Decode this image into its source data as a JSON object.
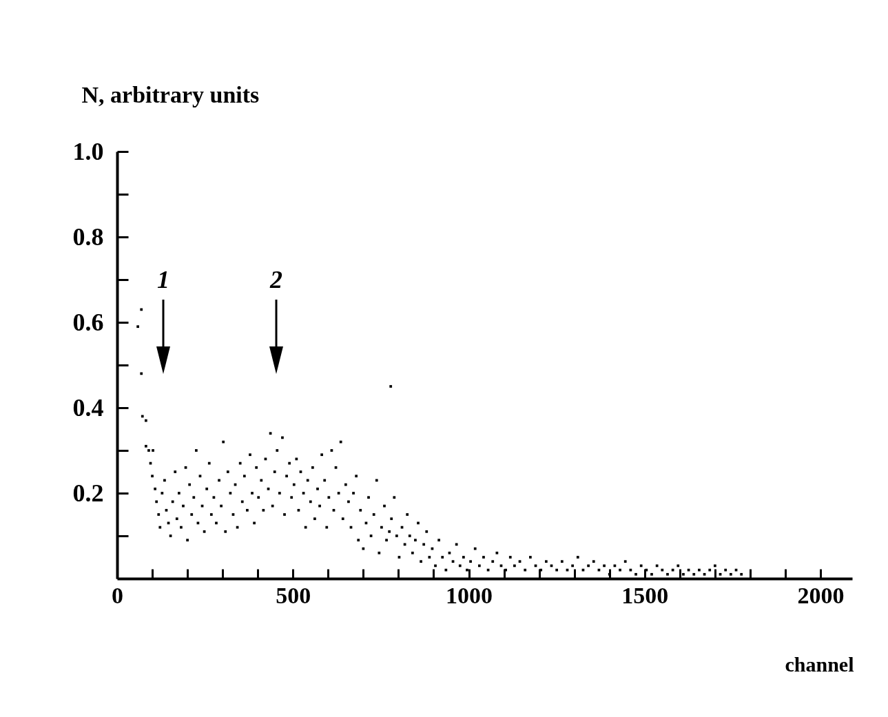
{
  "chart_data": {
    "type": "scatter",
    "ylabel": "N, arbitrary units",
    "xlabel": "channel",
    "x": [
      59,
      69,
      69,
      72,
      82,
      82,
      90,
      95,
      100,
      102,
      108,
      112,
      118,
      122,
      128,
      135,
      140,
      146,
      152,
      158,
      165,
      170,
      176,
      182,
      188,
      195,
      200,
      206,
      212,
      218,
      225,
      230,
      236,
      242,
      248,
      255,
      262,
      268,
      275,
      282,
      290,
      296,
      302,
      308,
      315,
      322,
      330,
      336,
      342,
      350,
      356,
      362,
      370,
      378,
      384,
      390,
      396,
      402,
      410,
      416,
      422,
      430,
      436,
      442,
      448,
      455,
      462,
      470,
      476,
      482,
      490,
      496,
      503,
      510,
      516,
      522,
      530,
      536,
      542,
      550,
      556,
      562,
      570,
      576,
      582,
      590,
      596,
      602,
      610,
      616,
      622,
      630,
      636,
      642,
      650,
      658,
      665,
      672,
      680,
      686,
      692,
      700,
      708,
      715,
      722,
      730,
      738,
      745,
      752,
      760,
      766,
      774,
      778,
      780,
      788,
      795,
      802,
      810,
      818,
      825,
      832,
      840,
      848,
      856,
      864,
      872,
      880,
      888,
      896,
      905,
      915,
      925,
      935,
      945,
      955,
      965,
      975,
      985,
      995,
      1005,
      1018,
      1030,
      1042,
      1055,
      1068,
      1080,
      1092,
      1105,
      1118,
      1130,
      1145,
      1160,
      1175,
      1190,
      1205,
      1220,
      1235,
      1250,
      1265,
      1280,
      1295,
      1310,
      1325,
      1340,
      1355,
      1370,
      1385,
      1400,
      1415,
      1430,
      1445,
      1460,
      1475,
      1490,
      1505,
      1520,
      1535,
      1550,
      1565,
      1580,
      1595,
      1610,
      1625,
      1640,
      1655,
      1670,
      1685,
      1700,
      1715,
      1730,
      1745,
      1760,
      1775
    ],
    "series": [
      {
        "color": "#000000",
        "values": [
          0.59,
          0.63,
          0.48,
          0.38,
          0.37,
          0.31,
          0.3,
          0.27,
          0.24,
          0.3,
          0.21,
          0.18,
          0.15,
          0.12,
          0.2,
          0.23,
          0.16,
          0.13,
          0.1,
          0.18,
          0.25,
          0.14,
          0.2,
          0.12,
          0.17,
          0.26,
          0.09,
          0.22,
          0.15,
          0.19,
          0.3,
          0.13,
          0.24,
          0.17,
          0.11,
          0.21,
          0.27,
          0.15,
          0.19,
          0.13,
          0.23,
          0.17,
          0.32,
          0.11,
          0.25,
          0.2,
          0.15,
          0.22,
          0.12,
          0.27,
          0.18,
          0.24,
          0.16,
          0.29,
          0.2,
          0.13,
          0.26,
          0.19,
          0.23,
          0.16,
          0.28,
          0.21,
          0.34,
          0.17,
          0.25,
          0.3,
          0.2,
          0.33,
          0.15,
          0.24,
          0.27,
          0.19,
          0.22,
          0.28,
          0.16,
          0.25,
          0.2,
          0.12,
          0.23,
          0.18,
          0.26,
          0.14,
          0.21,
          0.17,
          0.29,
          0.23,
          0.12,
          0.19,
          0.3,
          0.16,
          0.26,
          0.2,
          0.32,
          0.14,
          0.22,
          0.18,
          0.12,
          0.2,
          0.24,
          0.09,
          0.16,
          0.07,
          0.13,
          0.19,
          0.1,
          0.15,
          0.23,
          0.06,
          0.12,
          0.17,
          0.09,
          0.11,
          0.45,
          0.14,
          0.19,
          0.1,
          0.05,
          0.12,
          0.08,
          0.15,
          0.1,
          0.06,
          0.09,
          0.13,
          0.04,
          0.08,
          0.11,
          0.05,
          0.07,
          0.03,
          0.09,
          0.05,
          0.02,
          0.06,
          0.04,
          0.08,
          0.03,
          0.05,
          0.02,
          0.04,
          0.07,
          0.03,
          0.05,
          0.02,
          0.04,
          0.06,
          0.03,
          0.02,
          0.05,
          0.03,
          0.04,
          0.02,
          0.05,
          0.03,
          0.02,
          0.04,
          0.03,
          0.02,
          0.04,
          0.02,
          0.03,
          0.05,
          0.02,
          0.03,
          0.04,
          0.02,
          0.03,
          0.01,
          0.03,
          0.02,
          0.04,
          0.02,
          0.01,
          0.03,
          0.02,
          0.01,
          0.03,
          0.02,
          0.01,
          0.02,
          0.03,
          0.01,
          0.02,
          0.01,
          0.02,
          0.01,
          0.02,
          0.03,
          0.01,
          0.02,
          0.01,
          0.02,
          0.01
        ]
      }
    ],
    "xlim": [
      0,
      2090
    ],
    "ylim": [
      0,
      1.0
    ],
    "xticks": [
      0,
      {
        "value": 100,
        "label": null
      },
      {
        "value": 200,
        "label": null
      },
      {
        "value": 300,
        "label": null
      },
      {
        "value": 400,
        "label": null
      },
      500,
      {
        "value": 600,
        "label": null
      },
      {
        "value": 700,
        "label": null
      },
      {
        "value": 800,
        "label": null
      },
      {
        "value": 900,
        "label": null
      },
      1000,
      {
        "value": 1100,
        "label": null
      },
      {
        "value": 1200,
        "label": null
      },
      {
        "value": 1300,
        "label": null
      },
      {
        "value": 1400,
        "label": null
      },
      1500,
      {
        "value": 1600,
        "label": null
      },
      {
        "value": 1700,
        "label": null
      },
      {
        "value": 1800,
        "label": null
      },
      {
        "value": 1900,
        "label": null
      },
      2000
    ],
    "yticks": [
      {
        "value": 0.1,
        "label": null
      },
      {
        "value": 0.2,
        "label": "0.2"
      },
      {
        "value": 0.3,
        "label": null
      },
      {
        "value": 0.4,
        "label": "0.4"
      },
      {
        "value": 0.5,
        "label": null
      },
      {
        "value": 0.6,
        "label": "0.6"
      },
      {
        "value": 0.7,
        "label": null
      },
      {
        "value": 0.8,
        "label": "0.8"
      },
      {
        "value": 0.9,
        "label": null
      },
      {
        "value": 1.0,
        "label": "1.0"
      }
    ],
    "annotations": [
      "1",
      "2"
    ],
    "grid": false,
    "legend": false,
    "marker": "square"
  }
}
